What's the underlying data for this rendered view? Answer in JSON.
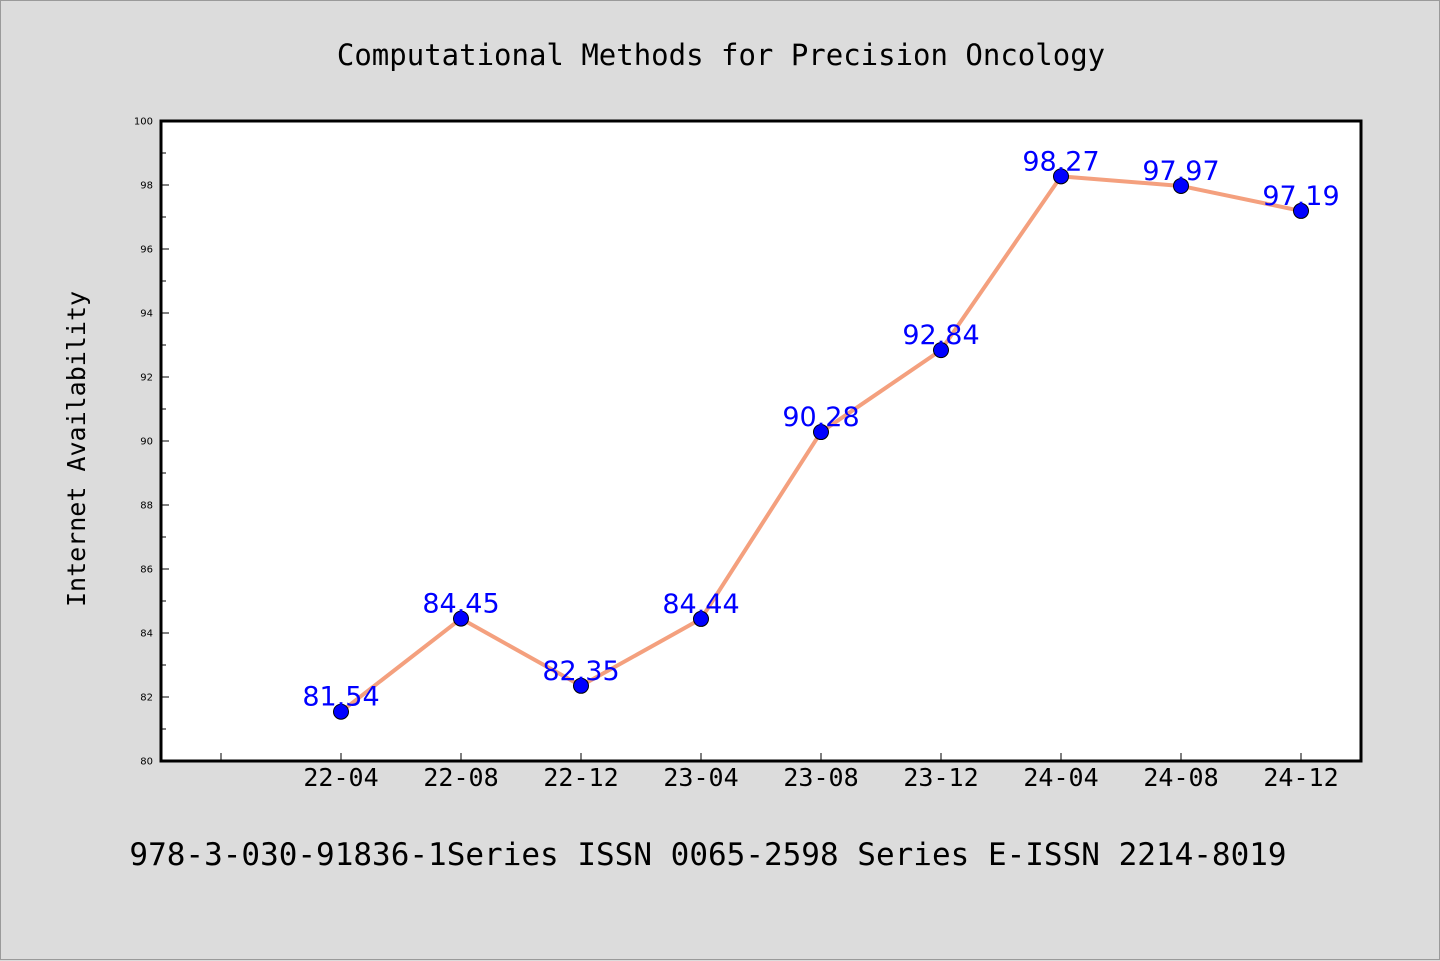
{
  "chart_data": {
    "type": "line",
    "title": "Computational Methods for Precision Oncology",
    "xlabel": "",
    "ylabel": "Internet Availability",
    "categories": [
      "22-04",
      "22-08",
      "22-12",
      "23-04",
      "23-08",
      "23-12",
      "24-04",
      "24-08",
      "24-12"
    ],
    "series": [
      {
        "values": [
          81.54,
          84.45,
          82.35,
          84.44,
          90.28,
          92.84,
          98.27,
          97.97,
          97.19
        ]
      }
    ],
    "data_labels": [
      "81.54",
      "84.45",
      "82.35",
      "84.44",
      "90.28",
      "92.84",
      "98.27",
      "97.97",
      "97.19"
    ],
    "ylim": [
      80,
      100
    ],
    "yticks": [
      "80",
      "82",
      "84",
      "86",
      "88",
      "90",
      "92",
      "94",
      "96",
      "98",
      "100"
    ],
    "grid": false,
    "legend": "none",
    "colors": {
      "line": "#f4a07e",
      "marker": "#0000ff",
      "label": "#0000ff",
      "background": "#dcdcdc",
      "plot": "#ffffff"
    }
  },
  "footer": "978-3-030-91836-1Series ISSN 0065-2598 Series E-ISSN 2214-8019"
}
